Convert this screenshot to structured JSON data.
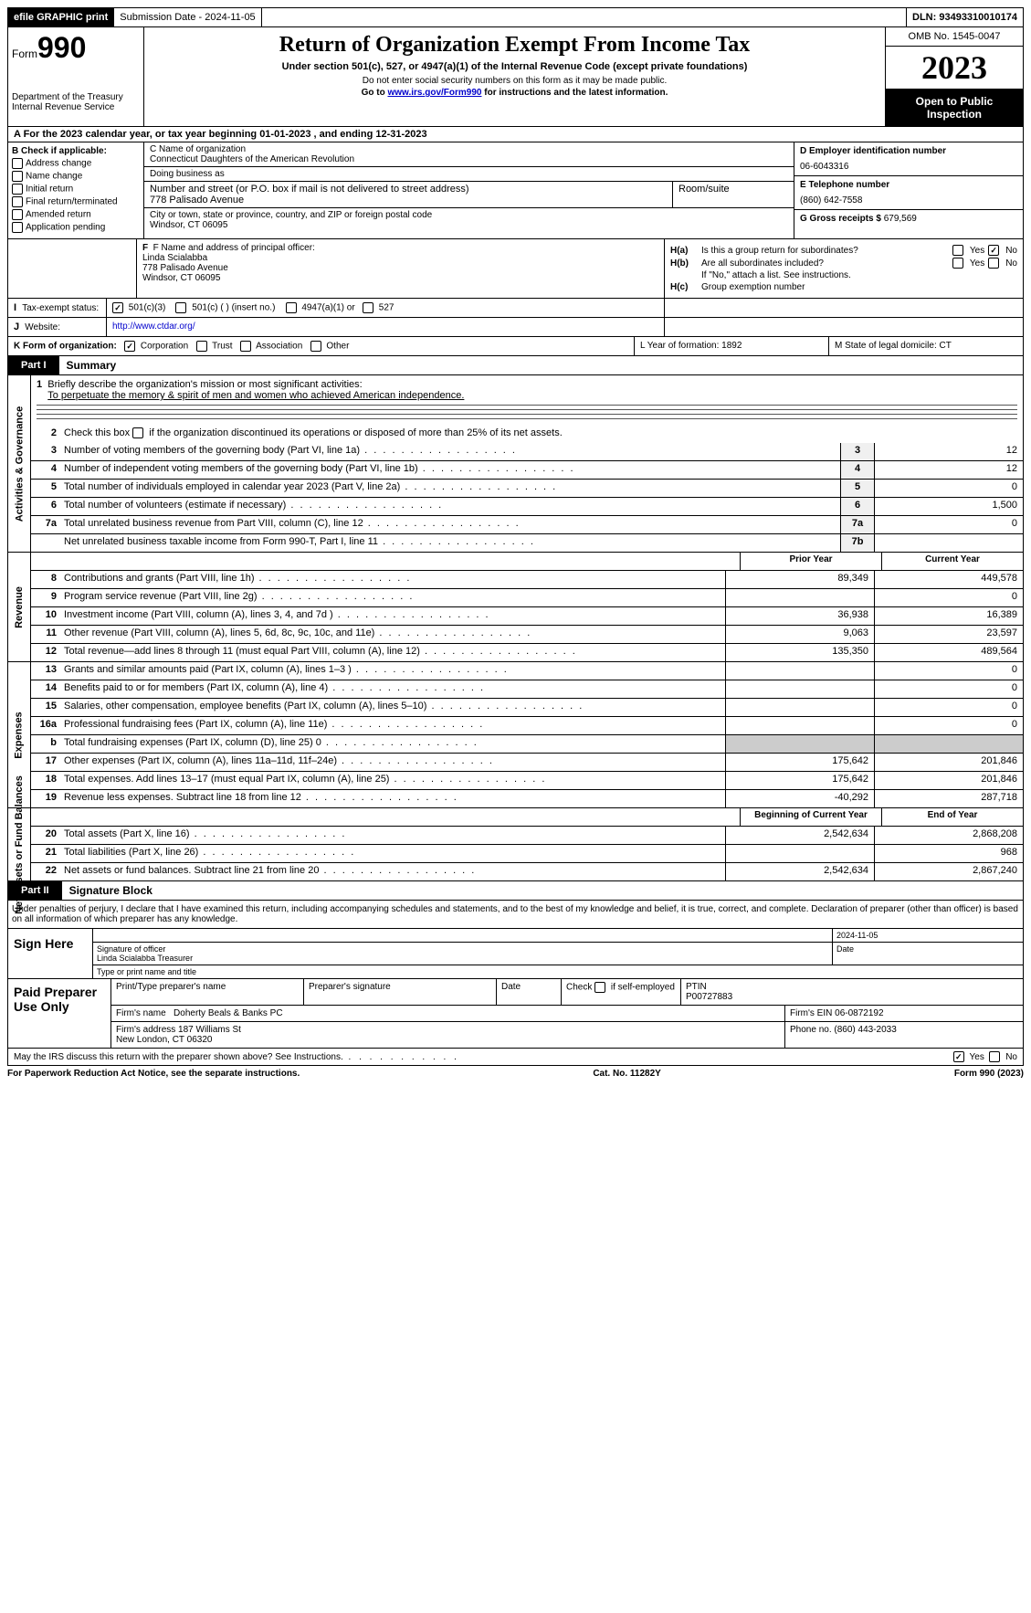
{
  "topbar": {
    "efile": "efile GRAPHIC print",
    "submission": "Submission Date - 2024-11-05",
    "dln": "DLN: 93493310010174"
  },
  "header": {
    "form_prefix": "Form",
    "form_number": "990",
    "title": "Return of Organization Exempt From Income Tax",
    "subtitle": "Under section 501(c), 527, or 4947(a)(1) of the Internal Revenue Code (except private foundations)",
    "note1": "Do not enter social security numbers on this form as it may be made public.",
    "note2_prefix": "Go to ",
    "note2_link": "www.irs.gov/Form990",
    "note2_suffix": " for instructions and the latest information.",
    "dept": "Department of the Treasury\nInternal Revenue Service",
    "omb": "OMB No. 1545-0047",
    "year": "2023",
    "inspect": "Open to Public Inspection"
  },
  "row_a": "A For the 2023 calendar year, or tax year beginning 01-01-2023   , and ending 12-31-2023",
  "box_b": {
    "header": "B Check if applicable:",
    "items": [
      "Address change",
      "Name change",
      "Initial return",
      "Final return/terminated",
      "Amended return",
      "Application pending"
    ]
  },
  "box_c": {
    "name_label": "C Name of organization",
    "name": "Connecticut Daughters of the American Revolution",
    "dba_label": "Doing business as",
    "dba": "",
    "street_label": "Number and street (or P.O. box if mail is not delivered to street address)",
    "street": "778 Palisado Avenue",
    "room_label": "Room/suite",
    "city_label": "City or town, state or province, country, and ZIP or foreign postal code",
    "city": "Windsor, CT  06095"
  },
  "box_d": {
    "ein_label": "D Employer identification number",
    "ein": "06-6043316",
    "phone_label": "E Telephone number",
    "phone": "(860) 642-7558",
    "receipts_label": "G Gross receipts $ ",
    "receipts": "679,569"
  },
  "box_f": {
    "label": "F  Name and address of principal officer:",
    "name": "Linda Scialabba",
    "addr1": "778 Palisado Avenue",
    "addr2": "Windsor, CT  06095"
  },
  "box_h": {
    "ha_label": "H(a)",
    "ha_text": "Is this a group return for subordinates?",
    "hb_label": "H(b)",
    "hb_text": "Are all subordinates included?",
    "hb_note": "If \"No,\" attach a list. See instructions.",
    "hc_label": "H(c)",
    "hc_text": "Group exemption number",
    "yes": "Yes",
    "no": "No"
  },
  "row_i": {
    "label": "I",
    "text": "Tax-exempt status:",
    "opts": [
      "501(c)(3)",
      "501(c) (  ) (insert no.)",
      "4947(a)(1) or",
      "527"
    ]
  },
  "row_j": {
    "label": "J",
    "text": "Website:",
    "url": "http://www.ctdar.org/"
  },
  "row_k": {
    "label": "K Form of organization:",
    "opts": [
      "Corporation",
      "Trust",
      "Association",
      "Other"
    ],
    "l": "L Year of formation: 1892",
    "m": "M State of legal domicile: CT"
  },
  "part1": {
    "num": "Part I",
    "title": "Summary"
  },
  "summary": {
    "mission_label": "Briefly describe the organization's mission or most significant activities:",
    "mission": "To perpetuate the memory & spirit of men and women who achieved American independence.",
    "line2": "Check this box       if the organization discontinued its operations or disposed of more than 25% of its net assets.",
    "sections": {
      "gov": "Activities & Governance",
      "rev": "Revenue",
      "exp": "Expenses",
      "net": "Net Assets or Fund Balances"
    },
    "govlines": [
      {
        "n": "3",
        "d": "Number of voting members of the governing body (Part VI, line 1a)",
        "b": "3",
        "v": "12"
      },
      {
        "n": "4",
        "d": "Number of independent voting members of the governing body (Part VI, line 1b)",
        "b": "4",
        "v": "12"
      },
      {
        "n": "5",
        "d": "Total number of individuals employed in calendar year 2023 (Part V, line 2a)",
        "b": "5",
        "v": "0"
      },
      {
        "n": "6",
        "d": "Total number of volunteers (estimate if necessary)",
        "b": "6",
        "v": "1,500"
      },
      {
        "n": "7a",
        "d": "Total unrelated business revenue from Part VIII, column (C), line 12",
        "b": "7a",
        "v": "0"
      },
      {
        "n": "",
        "d": "Net unrelated business taxable income from Form 990-T, Part I, line 11",
        "b": "7b",
        "v": ""
      }
    ],
    "cols": {
      "prior": "Prior Year",
      "current": "Current Year",
      "begin": "Beginning of Current Year",
      "end": "End of Year"
    },
    "revlines": [
      {
        "n": "8",
        "d": "Contributions and grants (Part VIII, line 1h)",
        "p": "89,349",
        "c": "449,578"
      },
      {
        "n": "9",
        "d": "Program service revenue (Part VIII, line 2g)",
        "p": "",
        "c": "0"
      },
      {
        "n": "10",
        "d": "Investment income (Part VIII, column (A), lines 3, 4, and 7d )",
        "p": "36,938",
        "c": "16,389"
      },
      {
        "n": "11",
        "d": "Other revenue (Part VIII, column (A), lines 5, 6d, 8c, 9c, 10c, and 11e)",
        "p": "9,063",
        "c": "23,597"
      },
      {
        "n": "12",
        "d": "Total revenue—add lines 8 through 11 (must equal Part VIII, column (A), line 12)",
        "p": "135,350",
        "c": "489,564"
      }
    ],
    "explines": [
      {
        "n": "13",
        "d": "Grants and similar amounts paid (Part IX, column (A), lines 1–3 )",
        "p": "",
        "c": "0"
      },
      {
        "n": "14",
        "d": "Benefits paid to or for members (Part IX, column (A), line 4)",
        "p": "",
        "c": "0"
      },
      {
        "n": "15",
        "d": "Salaries, other compensation, employee benefits (Part IX, column (A), lines 5–10)",
        "p": "",
        "c": "0"
      },
      {
        "n": "16a",
        "d": "Professional fundraising fees (Part IX, column (A), line 11e)",
        "p": "",
        "c": "0"
      },
      {
        "n": "b",
        "d": "Total fundraising expenses (Part IX, column (D), line 25) 0",
        "p": "shade",
        "c": "shade"
      },
      {
        "n": "17",
        "d": "Other expenses (Part IX, column (A), lines 11a–11d, 11f–24e)",
        "p": "175,642",
        "c": "201,846"
      },
      {
        "n": "18",
        "d": "Total expenses. Add lines 13–17 (must equal Part IX, column (A), line 25)",
        "p": "175,642",
        "c": "201,846"
      },
      {
        "n": "19",
        "d": "Revenue less expenses. Subtract line 18 from line 12",
        "p": "-40,292",
        "c": "287,718"
      }
    ],
    "netlines": [
      {
        "n": "20",
        "d": "Total assets (Part X, line 16)",
        "p": "2,542,634",
        "c": "2,868,208"
      },
      {
        "n": "21",
        "d": "Total liabilities (Part X, line 26)",
        "p": "",
        "c": "968"
      },
      {
        "n": "22",
        "d": "Net assets or fund balances. Subtract line 21 from line 20",
        "p": "2,542,634",
        "c": "2,867,240"
      }
    ]
  },
  "part2": {
    "num": "Part II",
    "title": "Signature Block"
  },
  "sig": {
    "declaration": "Under penalties of perjury, I declare that I have examined this return, including accompanying schedules and statements, and to the best of my knowledge and belief, it is true, correct, and complete. Declaration of preparer (other than officer) is based on all information of which preparer has any knowledge.",
    "sign_here": "Sign Here",
    "officer_sig": "Signature of officer",
    "officer_name": "Linda Scialabba  Treasurer",
    "type_label": "Type or print name and title",
    "date_label": "Date",
    "date": "2024-11-05"
  },
  "prep": {
    "label": "Paid Preparer Use Only",
    "print_label": "Print/Type preparer's name",
    "sig_label": "Preparer's signature",
    "date_label": "Date",
    "check_label": "Check        if self-employed",
    "ptin_label": "PTIN",
    "ptin": "P00727883",
    "firm_name_label": "Firm's name",
    "firm_name": "Doherty Beals & Banks PC",
    "firm_ein_label": "Firm's EIN",
    "firm_ein": "06-0872192",
    "firm_addr_label": "Firm's address",
    "firm_addr": "187 Williams St\nNew London, CT  06320",
    "phone_label": "Phone no.",
    "phone": "(860) 443-2033"
  },
  "discuss": {
    "text": "May the IRS discuss this return with the preparer shown above? See Instructions.",
    "yes": "Yes",
    "no": "No"
  },
  "footer": {
    "l": "For Paperwork Reduction Act Notice, see the separate instructions.",
    "c": "Cat. No. 11282Y",
    "r": "Form 990 (2023)"
  }
}
